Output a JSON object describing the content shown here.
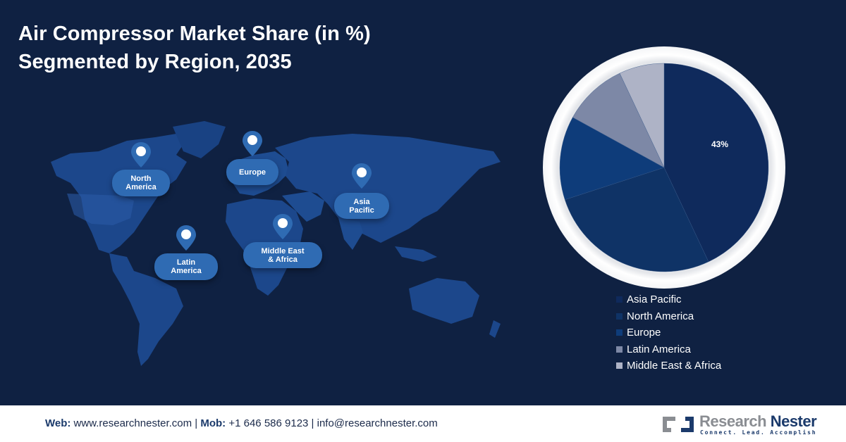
{
  "title": {
    "line1": "Air Compressor Market Share (in %)",
    "line2": "Segmented by Region, 2035"
  },
  "map": {
    "markers": [
      {
        "id": "north-america",
        "label_line1": "North",
        "label_line2": "America"
      },
      {
        "id": "europe",
        "label_line1": "Europe",
        "label_line2": ""
      },
      {
        "id": "asia-pacific",
        "label_line1": "Asia",
        "label_line2": "Pacific"
      },
      {
        "id": "latin-america",
        "label_line1": "Latin",
        "label_line2": "America"
      },
      {
        "id": "middle-east-africa",
        "label_line1": "Middle East",
        "label_line2": "& Africa"
      }
    ]
  },
  "chart_data": {
    "type": "pie",
    "title": "Air Compressor Market Share (in %) Segmented by Region, 2035",
    "categories": [
      "Asia Pacific",
      "North America",
      "Europe",
      "Latin America",
      "Middle East & Africa"
    ],
    "values": [
      43,
      27,
      13,
      10,
      7
    ],
    "colors": [
      "#0f2a5c",
      "#0f3366",
      "#0e3c7a",
      "#7d88a6",
      "#aeb3c6"
    ],
    "data_labels": {
      "Asia Pacific": "43%"
    },
    "start_angle_deg": 0,
    "direction": "clockwise",
    "legend_position": "bottom-right"
  },
  "legend": {
    "items": [
      {
        "label": "Asia Pacific",
        "color": "#0f2a5c"
      },
      {
        "label": "North America",
        "color": "#0f3366"
      },
      {
        "label": "Europe",
        "color": "#0e3c7a"
      },
      {
        "label": "Latin America",
        "color": "#7d88a6"
      },
      {
        "label": "Middle East & Africa",
        "color": "#aeb3c6"
      }
    ]
  },
  "footer": {
    "web_label": "Web:",
    "web_value": " www.researchnester.com | ",
    "mob_label": "Mob:",
    "mob_value": " +1 646 586 9123 | info@researchnester.com",
    "logo_word1": "Research",
    "logo_word2": "Nester",
    "logo_tagline": "Connect. Lead. Accomplish"
  }
}
